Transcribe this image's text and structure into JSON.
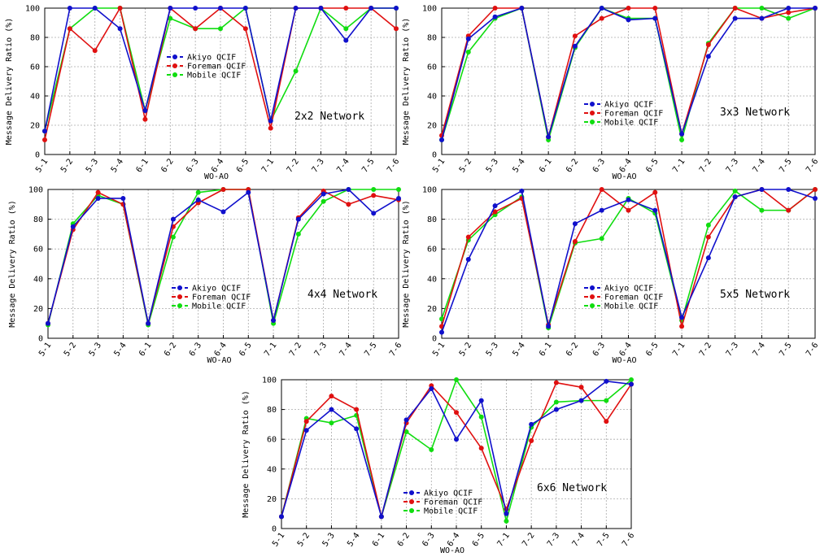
{
  "colors": {
    "Akiyo QCIF": "#1010cc",
    "Foreman QCIF": "#e01010",
    "Mobile QCIF": "#10dd10"
  },
  "chart_data": [
    {
      "type": "line",
      "annotation": "2x2 Network",
      "ylabel": "Message Delivery Ratio (%)",
      "xlabel": "WO-AO",
      "ylim": [
        0,
        100
      ],
      "yticks": [
        0,
        20,
        40,
        60,
        80,
        100
      ],
      "grid": true,
      "legend_placement": "center",
      "categories": [
        "5-1",
        "5-2",
        "5-3",
        "5-4",
        "6-1",
        "6-2",
        "6-3",
        "6-4",
        "6-5",
        "7-1",
        "7-2",
        "7-3",
        "7-4",
        "7-5",
        "7-6"
      ],
      "series": [
        {
          "name": "Akiyo QCIF",
          "values": [
            16,
            100,
            100,
            86,
            30,
            100,
            100,
            100,
            100,
            23,
            100,
            100,
            78,
            100,
            100
          ]
        },
        {
          "name": "Foreman QCIF",
          "values": [
            10,
            86,
            71,
            100,
            24,
            100,
            86,
            100,
            86,
            18,
            100,
            100,
            100,
            100,
            86
          ]
        },
        {
          "name": "Mobile QCIF",
          "values": [
            16,
            86,
            100,
            100,
            30,
            93,
            86,
            86,
            100,
            23,
            57,
            100,
            86,
            100,
            100
          ]
        }
      ]
    },
    {
      "type": "line",
      "annotation": "3x3 Network",
      "ylabel": "Message Delivery Ratio (%)",
      "xlabel": "WO-AO",
      "ylim": [
        0,
        100
      ],
      "yticks": [
        0,
        20,
        40,
        60,
        80,
        100
      ],
      "grid": true,
      "legend_placement": "bottom-center",
      "categories": [
        "5-1",
        "5-2",
        "5-3",
        "5-4",
        "6-1",
        "6-2",
        "6-3",
        "6-4",
        "6-5",
        "7-1",
        "7-2",
        "7-3",
        "7-4",
        "7-5",
        "7-6"
      ],
      "series": [
        {
          "name": "Akiyo QCIF",
          "values": [
            10,
            79,
            94,
            100,
            12,
            74,
            100,
            92,
            93,
            14,
            67,
            93,
            93,
            100,
            100
          ]
        },
        {
          "name": "Foreman QCIF",
          "values": [
            13,
            81,
            100,
            100,
            12,
            81,
            93,
            100,
            100,
            14,
            75,
            100,
            93,
            97,
            100
          ]
        },
        {
          "name": "Mobile QCIF",
          "values": [
            10,
            70,
            93,
            100,
            10,
            73,
            100,
            93,
            93,
            10,
            76,
            100,
            100,
            93,
            100
          ]
        }
      ]
    },
    {
      "type": "line",
      "annotation": "4x4 Network",
      "ylabel": "Message Delivery Ratio (%)",
      "xlabel": "WO-AO",
      "ylim": [
        0,
        100
      ],
      "yticks": [
        0,
        20,
        40,
        60,
        80,
        100
      ],
      "grid": true,
      "legend_placement": "bottom-center",
      "categories": [
        "5-1",
        "5-2",
        "5-3",
        "5-4",
        "6-1",
        "6-2",
        "6-3",
        "6-4",
        "6-5",
        "7-1",
        "7-2",
        "7-3",
        "7-4",
        "7-5",
        "7-6"
      ],
      "series": [
        {
          "name": "Akiyo QCIF",
          "values": [
            10,
            75,
            94,
            94,
            10,
            80,
            93,
            85,
            98,
            12,
            80,
            97,
            100,
            84,
            94
          ]
        },
        {
          "name": "Foreman QCIF",
          "values": [
            10,
            73,
            98,
            90,
            10,
            75,
            91,
            100,
            100,
            12,
            81,
            99,
            90,
            96,
            93
          ]
        },
        {
          "name": "Mobile QCIF",
          "values": [
            9,
            77,
            96,
            90,
            9,
            68,
            98,
            100,
            100,
            10,
            70,
            92,
            100,
            100,
            100
          ]
        }
      ]
    },
    {
      "type": "line",
      "annotation": "5x5 Network",
      "ylabel": "Message Delivery Ratio (%)",
      "xlabel": "WO-AO",
      "ylim": [
        0,
        100
      ],
      "yticks": [
        0,
        20,
        40,
        60,
        80,
        100
      ],
      "grid": true,
      "legend_placement": "bottom-center",
      "categories": [
        "5-1",
        "5-2",
        "5-3",
        "5-4",
        "6-1",
        "6-2",
        "6-3",
        "6-4",
        "6-5",
        "7-1",
        "7-2",
        "7-3",
        "7-4",
        "7-5",
        "7-6"
      ],
      "series": [
        {
          "name": "Akiyo QCIF",
          "values": [
            4,
            53,
            89,
            99,
            8,
            77,
            86,
            93,
            86,
            14,
            54,
            95,
            100,
            100,
            94
          ]
        },
        {
          "name": "Foreman QCIF",
          "values": [
            8,
            68,
            85,
            94,
            9,
            65,
            100,
            86,
            98,
            8,
            68,
            95,
            100,
            86,
            100
          ]
        },
        {
          "name": "Mobile QCIF",
          "values": [
            13,
            66,
            83,
            95,
            7,
            64,
            67,
            94,
            84,
            12,
            76,
            99,
            86,
            86,
            100
          ]
        }
      ]
    },
    {
      "type": "line",
      "annotation": "6x6 Network",
      "ylabel": "Message Delivery Ratio (%)",
      "xlabel": "WO-AO",
      "ylim": [
        0,
        100
      ],
      "yticks": [
        0,
        20,
        40,
        60,
        80,
        100
      ],
      "grid": true,
      "legend_placement": "bottom-center",
      "categories": [
        "5-1",
        "5-2",
        "5-3",
        "5-4",
        "6-1",
        "6-2",
        "6-3",
        "6-4",
        "6-5",
        "7-1",
        "7-2",
        "7-3",
        "7-4",
        "7-5",
        "7-6"
      ],
      "series": [
        {
          "name": "Akiyo QCIF",
          "values": [
            8,
            66,
            80,
            67,
            8,
            73,
            94,
            60,
            86,
            10,
            70,
            80,
            86,
            99,
            97
          ]
        },
        {
          "name": "Foreman QCIF",
          "values": [
            8,
            72,
            89,
            80,
            8,
            71,
            96,
            78,
            54,
            13,
            59,
            98,
            95,
            72,
            97
          ]
        },
        {
          "name": "Mobile QCIF",
          "values": [
            8,
            74,
            71,
            76,
            8,
            65,
            53,
            100,
            75,
            5,
            68,
            85,
            86,
            86,
            100
          ]
        }
      ]
    }
  ]
}
